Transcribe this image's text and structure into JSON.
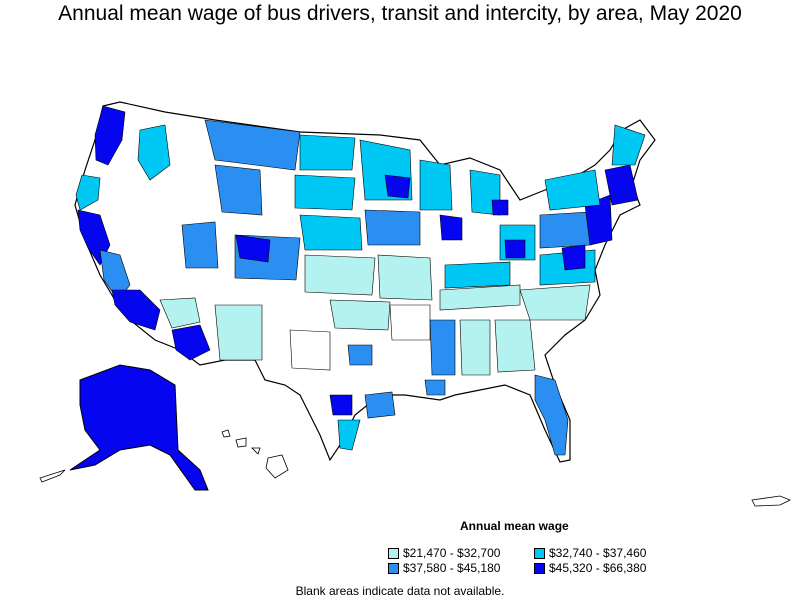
{
  "title": "Annual mean wage of bus drivers, transit and intercity, by area, May 2020",
  "legend": {
    "title": "Annual mean wage",
    "items": [
      {
        "label": "$21,470 - $32,700",
        "color": "#b3f2ee"
      },
      {
        "label": "$32,740 - $37,460",
        "color": "#00c8f5"
      },
      {
        "label": "$37,580 - $45,180",
        "color": "#2a8ff0"
      },
      {
        "label": "$45,320 - $66,380",
        "color": "#0505f0"
      }
    ]
  },
  "note": "Blank areas indicate data not available.",
  "colors": {
    "c1": "#b3f2ee",
    "c2": "#00c8f5",
    "c3": "#2a8ff0",
    "c4": "#0505f0",
    "blank": "#ffffff",
    "border": "#000000"
  }
}
